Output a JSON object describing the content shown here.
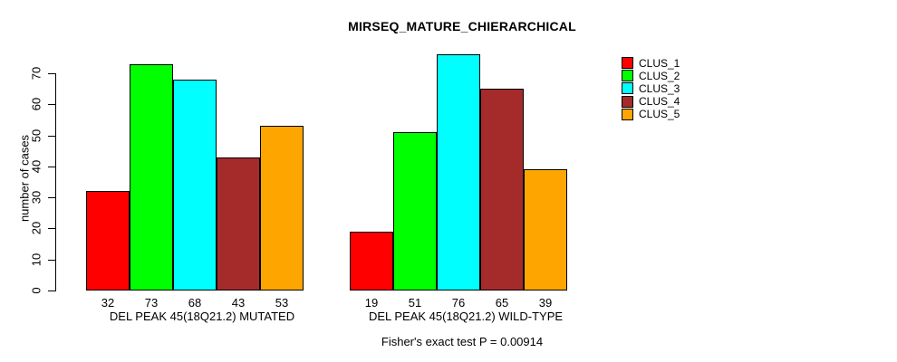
{
  "chart_data": {
    "type": "bar",
    "title": "MIRSEQ_MATURE_CHIERARCHICAL",
    "ylabel": "number of cases",
    "xlabel": "",
    "ylim": [
      0,
      70
    ],
    "yticks": [
      0,
      10,
      20,
      30,
      40,
      50,
      60,
      70
    ],
    "grid": false,
    "legend_position": "right",
    "categories": [
      "DEL PEAK 45(18Q21.2) MUTATED",
      "DEL PEAK 45(18Q21.2) WILD-TYPE"
    ],
    "series": [
      {
        "name": "CLUS_1",
        "color": "#FF0000",
        "values": [
          32,
          19
        ]
      },
      {
        "name": "CLUS_2",
        "color": "#00FF00",
        "values": [
          73,
          51
        ]
      },
      {
        "name": "CLUS_3",
        "color": "#00FFFF",
        "values": [
          68,
          76
        ]
      },
      {
        "name": "CLUS_4",
        "color": "#A52A2A",
        "values": [
          43,
          65
        ]
      },
      {
        "name": "CLUS_5",
        "color": "#FFA500",
        "values": [
          53,
          39
        ]
      }
    ],
    "bar_value_labels": [
      [
        32,
        73,
        68,
        43,
        53
      ],
      [
        19,
        51,
        76,
        65,
        39
      ]
    ],
    "annotation": "Fisher's exact test P = 0.00914"
  },
  "colors": {
    "background": "#FFFFFF",
    "axis": "#000000",
    "text": "#000000"
  }
}
